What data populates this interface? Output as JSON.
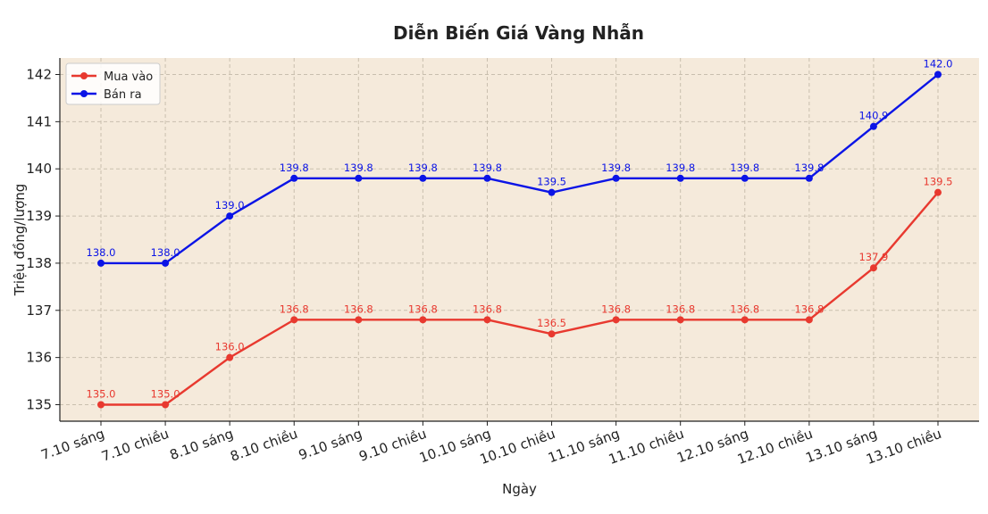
{
  "chart_data": {
    "type": "line",
    "title": "Diễn Biến Giá Vàng Nhẫn",
    "xlabel": "Ngày",
    "ylabel": "Triệu đồng/lượng",
    "categories": [
      "7.10 sáng",
      "7.10 chiều",
      "8.10 sáng",
      "8.10 chiều",
      "9.10 sáng",
      "9.10 chiều",
      "10.10 sáng",
      "10.10 chiều",
      "11.10 sáng",
      "11.10 chiều",
      "12.10 sáng",
      "12.10 chiều",
      "13.10 sáng",
      "13.10 chiều"
    ],
    "ylim": [
      134.65,
      142.35
    ],
    "yticks": [
      135,
      136,
      137,
      138,
      139,
      140,
      141,
      142
    ],
    "grid": true,
    "legend_position": "top-left",
    "plot_background": "#f5eadb",
    "series": [
      {
        "name": "Mua vào",
        "color": "#e8392f",
        "values": [
          135.0,
          135.0,
          136.0,
          136.8,
          136.8,
          136.8,
          136.8,
          136.5,
          136.8,
          136.8,
          136.8,
          136.8,
          137.9,
          139.5
        ],
        "labels": [
          "135.0",
          "135.0",
          "136.0",
          "136.8",
          "136.8",
          "136.8",
          "136.8",
          "136.5",
          "136.8",
          "136.8",
          "136.8",
          "136.8",
          "137.9",
          "139.5"
        ]
      },
      {
        "name": "Bán ra",
        "color": "#0b14e6",
        "values": [
          138.0,
          138.0,
          139.0,
          139.8,
          139.8,
          139.8,
          139.8,
          139.5,
          139.8,
          139.8,
          139.8,
          139.8,
          140.9,
          142.0
        ],
        "labels": [
          "138.0",
          "138.0",
          "139.0",
          "139.8",
          "139.8",
          "139.8",
          "139.8",
          "139.5",
          "139.8",
          "139.8",
          "139.8",
          "139.8",
          "140.9",
          "142.0"
        ]
      }
    ]
  }
}
